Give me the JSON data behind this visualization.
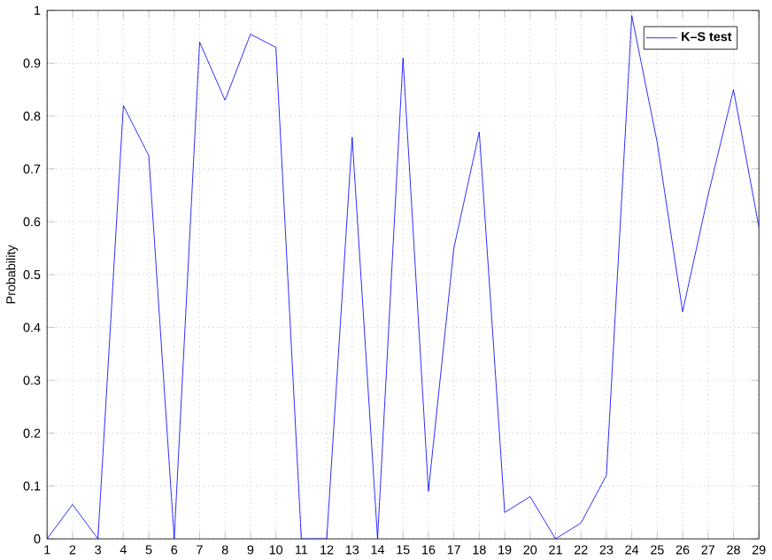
{
  "chart_data": {
    "type": "line",
    "ylabel": "Probability",
    "x": [
      1,
      2,
      3,
      4,
      5,
      6,
      7,
      8,
      9,
      10,
      11,
      12,
      13,
      14,
      15,
      16,
      17,
      18,
      19,
      20,
      21,
      22,
      23,
      24,
      25,
      26,
      27,
      28,
      29
    ],
    "series": [
      {
        "name": "K–S test",
        "color": "#0000ff",
        "values": [
          0,
          0.065,
          0,
          0.82,
          0.725,
          0,
          0.94,
          0.83,
          0.955,
          0.93,
          0,
          0,
          0.76,
          0,
          0.91,
          0.09,
          0.55,
          0.77,
          0.05,
          0.08,
          0,
          0.03,
          0.12,
          0.99,
          0.75,
          0.43,
          0.65,
          0.85,
          0.59
        ]
      }
    ],
    "xlim": [
      1,
      29
    ],
    "xticks": [
      1,
      2,
      3,
      4,
      5,
      6,
      7,
      8,
      9,
      10,
      11,
      12,
      13,
      14,
      15,
      16,
      17,
      18,
      19,
      20,
      21,
      22,
      23,
      24,
      25,
      26,
      27,
      28,
      29
    ],
    "ylim": [
      0,
      1
    ],
    "yticks": [
      0,
      0.1,
      0.2,
      0.3,
      0.4,
      0.5,
      0.6,
      0.7,
      0.8,
      0.9,
      1
    ],
    "grid": true,
    "legend": "top right",
    "marker": "none",
    "line_style": "solid"
  }
}
